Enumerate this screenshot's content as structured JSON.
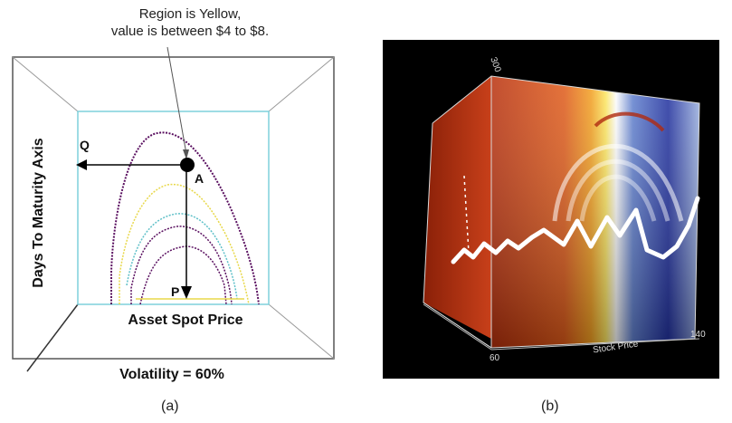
{
  "panel_a": {
    "callout_line1": "Region is Yellow,",
    "callout_line2": "value is between $4 to $8.",
    "y_axis_label": "Days To Maturity Axis",
    "x_axis_label": "Asset Spot Price",
    "point_a_label": "A",
    "point_q_label": "Q",
    "point_p_label": "P",
    "volatility_label": "Volatility = 60%",
    "caption": "(a)"
  },
  "panel_b": {
    "x_axis_label": "Stock Price",
    "x_tick_min": "60",
    "x_tick_max": "140",
    "z_tick_top": "300",
    "caption": "(b)"
  },
  "colors": {
    "contour_outer": "#5a1060",
    "contour_yellow": "#e8d84a",
    "contour_cyan": "#5fc0c8",
    "inner_box": "#7fd0dc",
    "volume_red": "#c83a10",
    "volume_blue": "#2030a0",
    "path_white": "#ffffff"
  }
}
